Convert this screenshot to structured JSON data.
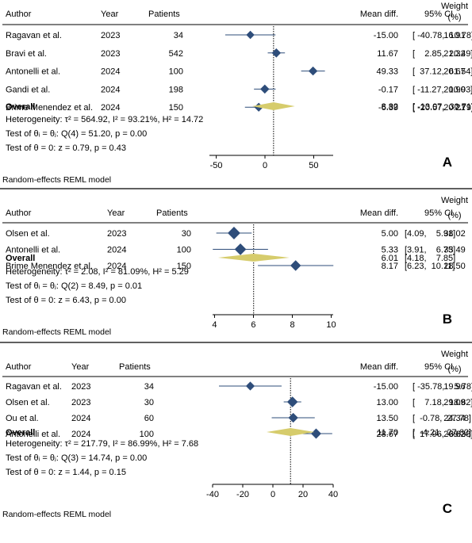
{
  "colors": {
    "marker": "#2e4d7a",
    "diamond": "#d6cc6c",
    "ci_line": "#2e4d7a",
    "rule": "#000000",
    "ref_line": "#000000"
  },
  "chart_data": [
    {
      "type": "forest",
      "panel_label": "A",
      "headers": {
        "author": "Author",
        "year": "Year",
        "patients": "Patients",
        "mean": "Mean diff.",
        "ci": "95% CI",
        "weight_line1": "Weight",
        "weight_line2": "(%)"
      },
      "studies": [
        {
          "author": "Ragavan et al.",
          "year": "2023",
          "patients": "34",
          "mean": -15.0,
          "lo": -40.78,
          "hi": 10.78,
          "mean_text": "-15.00",
          "ci_text": "[ -40.78,  10.78]",
          "weight_text": "16.91",
          "weight": 16.91
        },
        {
          "author": "Bravi et al.",
          "year": "2023",
          "patients": "542",
          "mean": 11.67,
          "lo": 2.85,
          "hi": 20.49,
          "mean_text": "11.67",
          "ci_text": "[    2.85,  20.49]",
          "weight_text": "21.32",
          "weight": 21.32
        },
        {
          "author": "Antonelli et al.",
          "year": "2024",
          "patients": "100",
          "mean": 49.33,
          "lo": 37.12,
          "hi": 61.54,
          "mean_text": "49.33",
          "ci_text": "[  37.12,  61.54]",
          "weight_text": "20.67",
          "weight": 20.67
        },
        {
          "author": "Gandi et al.",
          "year": "2024",
          "patients": "198",
          "mean": -0.17,
          "lo": -11.27,
          "hi": 10.93,
          "mean_text": "-0.17",
          "ci_text": "[ -11.27,  10.93]",
          "weight_text": "20.90",
          "weight": 20.9
        },
        {
          "author": "Brime Menendez et al.",
          "year": "2024",
          "patients": "150",
          "mean": -6.39,
          "lo": -20.57,
          "hi": 7.79,
          "mean_text": "-6.39",
          "ci_text": "[ -20.57,    7.79]",
          "weight_text": "20.21",
          "weight": 20.21
        }
      ],
      "overall": {
        "label": "Overall",
        "mean": 8.82,
        "lo": -13.07,
        "hi": 30.71,
        "mean_text": "8.82",
        "ci_text": "[ -13.07,  30.71]"
      },
      "stats": [
        "Heterogeneity: τ² = 564.92, I² = 93.21%, H² = 14.72",
        "Test of θᵢ = θⱼ: Q(4) = 51.20, p = 0.00",
        "Test of θ = 0: z = 0.79, p = 0.43"
      ],
      "model_note": "Random-effects REML model",
      "xaxis": {
        "min": -57,
        "max": 70,
        "ticks": [
          -50,
          0,
          50
        ],
        "tick_labels": [
          "-50",
          "0",
          "50"
        ]
      }
    },
    {
      "type": "forest",
      "panel_label": "B",
      "headers": {
        "author": "Author",
        "year": "Year",
        "patients": "Patients",
        "mean": "Mean diff.",
        "ci": "95% CI",
        "weight_line1": "Weight",
        "weight_line2": "(%)"
      },
      "studies": [
        {
          "author": "Olsen et al.",
          "year": "2023",
          "patients": "30",
          "mean": 5.0,
          "lo": 4.09,
          "hi": 5.91,
          "mean_text": "5.00",
          "ci_text": "[4.09,    5.91]",
          "weight_text": "38.02",
          "weight": 38.02
        },
        {
          "author": "Antonelli et al.",
          "year": "2024",
          "patients": "100",
          "mean": 5.33,
          "lo": 3.91,
          "hi": 6.75,
          "mean_text": "5.33",
          "ci_text": "[3.91,    6.75]",
          "weight_text": "33.49",
          "weight": 33.49
        },
        {
          "author": "Brime Menendez et al.",
          "year": "2024",
          "patients": "150",
          "mean": 8.17,
          "lo": 6.23,
          "hi": 10.11,
          "mean_text": "8.17",
          "ci_text": "[6.23,  10.11]",
          "weight_text": "28.50",
          "weight": 28.5
        }
      ],
      "overall": {
        "label": "Overall",
        "mean": 6.01,
        "lo": 4.18,
        "hi": 7.85,
        "mean_text": "6.01",
        "ci_text": "[4.18,    7.85]"
      },
      "stats": [
        "Heterogeneity: τ² = 2.08, I² = 81.09%, H² = 5.29",
        "Test of θᵢ = θⱼ: Q(2) = 8.49, p = 0.01",
        "Test of θ = 0: z = 6.43, p = 0.00"
      ],
      "model_note": "Random-effects REML model",
      "xaxis": {
        "min": 3.9,
        "max": 10.1,
        "ticks": [
          4,
          6,
          8,
          10
        ],
        "tick_labels": [
          "4",
          "6",
          "8",
          "10"
        ]
      }
    },
    {
      "type": "forest",
      "panel_label": "C",
      "headers": {
        "author": "Author",
        "year": "Year",
        "patients": "Patients",
        "mean": "Mean diff.",
        "ci": "95% CI",
        "weight_line1": "Weight",
        "weight_line2": "(%)"
      },
      "studies": [
        {
          "author": "Ragavan et al.",
          "year": "2023",
          "patients": "34",
          "mean": -15.0,
          "lo": -35.78,
          "hi": 5.78,
          "mean_text": "-15.00",
          "ci_text": "[ -35.78,    5.78]",
          "weight_text": "19.96",
          "weight": 19.96
        },
        {
          "author": "Olsen et al.",
          "year": "2023",
          "patients": "30",
          "mean": 13.0,
          "lo": 7.18,
          "hi": 18.82,
          "mean_text": "13.00",
          "ci_text": "[    7.18,  18.82]",
          "weight_text": "29.09",
          "weight": 29.09
        },
        {
          "author": "Ou et al.",
          "year": "2024",
          "patients": "60",
          "mean": 13.5,
          "lo": -0.78,
          "hi": 27.78,
          "mean_text": "13.50",
          "ci_text": "[  -0.78,  27.78]",
          "weight_text": "24.34",
          "weight": 24.34
        },
        {
          "author": "Antonelli et al.",
          "year": "2024",
          "patients": "100",
          "mean": 28.67,
          "lo": 17.96,
          "hi": 39.38,
          "mean_text": "28.67",
          "ci_text": "[  17.96,  39.38]",
          "weight_text": "26.62",
          "weight": 26.62
        }
      ],
      "overall": {
        "label": "Overall",
        "mean": 11.7,
        "lo": -4.21,
        "hi": 27.62,
        "mean_text": "11.70",
        "ci_text": "[  -4.21,  27.62]"
      },
      "stats": [
        "Heterogeneity: τ² = 217.79, I² = 86.99%, H² = 7.68",
        "Test of θᵢ = θⱼ: Q(3) = 14.74, p = 0.00",
        "Test of θ = 0: z = 1.44, p = 0.15"
      ],
      "model_note": "Random-effects REML model",
      "xaxis": {
        "min": -40,
        "max": 40,
        "ticks": [
          -40,
          -20,
          0,
          20,
          40
        ],
        "tick_labels": [
          "-40",
          "-20",
          "0",
          "20",
          "40"
        ]
      }
    }
  ]
}
